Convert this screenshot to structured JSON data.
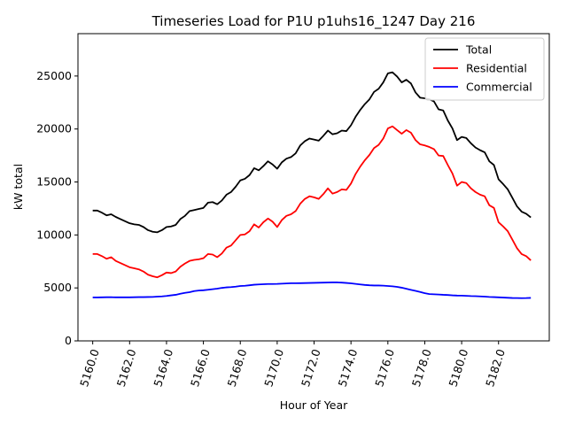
{
  "chart_data": {
    "type": "line",
    "title": "Timeseries Load for P1U p1uhs16_1247  Day 216",
    "xlabel": "Hour of Year",
    "ylabel": "kW total",
    "xlim": [
      5159.2,
      5184.75
    ],
    "ylim": [
      0,
      29000
    ],
    "xticks": [
      5160,
      5162,
      5164,
      5166,
      5168,
      5170,
      5172,
      5174,
      5176,
      5178,
      5180,
      5182
    ],
    "xtick_labels": [
      "5160.0",
      "5162.0",
      "5164.0",
      "5166.0",
      "5168.0",
      "5170.0",
      "5172.0",
      "5174.0",
      "5176.0",
      "5178.0",
      "5180.0",
      "5182.0"
    ],
    "yticks": [
      0,
      5000,
      10000,
      15000,
      20000,
      25000
    ],
    "ytick_labels": [
      "0",
      "5000",
      "10000",
      "15000",
      "20000",
      "25000"
    ],
    "legend_position": "top-right",
    "x_start": 5160.0,
    "x_step": 0.25,
    "series": [
      {
        "name": "Total",
        "color": "#000000",
        "values": [
          12300,
          12300,
          12100,
          11850,
          11950,
          11700,
          11500,
          11300,
          11100,
          11000,
          10950,
          10750,
          10450,
          10300,
          10250,
          10450,
          10750,
          10800,
          10950,
          11500,
          11800,
          12250,
          12350,
          12450,
          12550,
          13050,
          13100,
          12900,
          13250,
          13800,
          14050,
          14550,
          15150,
          15300,
          15650,
          16300,
          16100,
          16500,
          16950,
          16650,
          16250,
          16850,
          17200,
          17350,
          17700,
          18450,
          18850,
          19100,
          19000,
          18900,
          19350,
          19850,
          19500,
          19600,
          19850,
          19800,
          20350,
          21150,
          21800,
          22350,
          22800,
          23500,
          23800,
          24400,
          25250,
          25350,
          24950,
          24400,
          24650,
          24300,
          23450,
          22950,
          22900,
          22800,
          22600,
          21850,
          21750,
          20800,
          20050,
          18950,
          19250,
          19150,
          18650,
          18250,
          18000,
          17800,
          16950,
          16600,
          15250,
          14800,
          14300,
          13500,
          12700,
          12200,
          12000,
          11650
        ]
      },
      {
        "name": "Residential",
        "color": "#ff0000",
        "values": [
          8200,
          8200,
          8000,
          7750,
          7900,
          7550,
          7350,
          7150,
          6950,
          6850,
          6750,
          6550,
          6250,
          6100,
          6000,
          6200,
          6450,
          6400,
          6550,
          7000,
          7300,
          7550,
          7650,
          7700,
          7800,
          8200,
          8150,
          7900,
          8250,
          8800,
          9000,
          9500,
          10000,
          10050,
          10350,
          11000,
          10700,
          11200,
          11550,
          11250,
          10750,
          11400,
          11800,
          11950,
          12250,
          12950,
          13400,
          13650,
          13550,
          13400,
          13850,
          14400,
          13900,
          14050,
          14300,
          14250,
          14850,
          15750,
          16450,
          17050,
          17550,
          18200,
          18500,
          19100,
          20050,
          20250,
          19900,
          19550,
          19900,
          19650,
          18950,
          18550,
          18450,
          18300,
          18100,
          17500,
          17450,
          16600,
          15800,
          14650,
          15000,
          14900,
          14400,
          14050,
          13800,
          13650,
          12800,
          12550,
          11200,
          10800,
          10350,
          9550,
          8750,
          8200,
          8000,
          7600
        ]
      },
      {
        "name": "Commercial",
        "color": "#0000ff",
        "values": [
          4100,
          4100,
          4110,
          4120,
          4120,
          4110,
          4110,
          4110,
          4110,
          4120,
          4130,
          4130,
          4140,
          4150,
          4180,
          4200,
          4240,
          4300,
          4350,
          4450,
          4530,
          4600,
          4700,
          4750,
          4780,
          4830,
          4880,
          4930,
          5000,
          5050,
          5080,
          5120,
          5180,
          5200,
          5250,
          5300,
          5330,
          5350,
          5370,
          5370,
          5380,
          5400,
          5420,
          5440,
          5440,
          5450,
          5460,
          5470,
          5480,
          5490,
          5500,
          5510,
          5520,
          5520,
          5500,
          5470,
          5430,
          5380,
          5330,
          5280,
          5250,
          5230,
          5230,
          5210,
          5180,
          5150,
          5100,
          5020,
          4920,
          4820,
          4720,
          4620,
          4500,
          4420,
          4400,
          4380,
          4350,
          4330,
          4300,
          4280,
          4270,
          4250,
          4230,
          4220,
          4200,
          4180,
          4150,
          4130,
          4110,
          4090,
          4070,
          4050,
          4040,
          4030,
          4040,
          4060
        ]
      }
    ]
  }
}
